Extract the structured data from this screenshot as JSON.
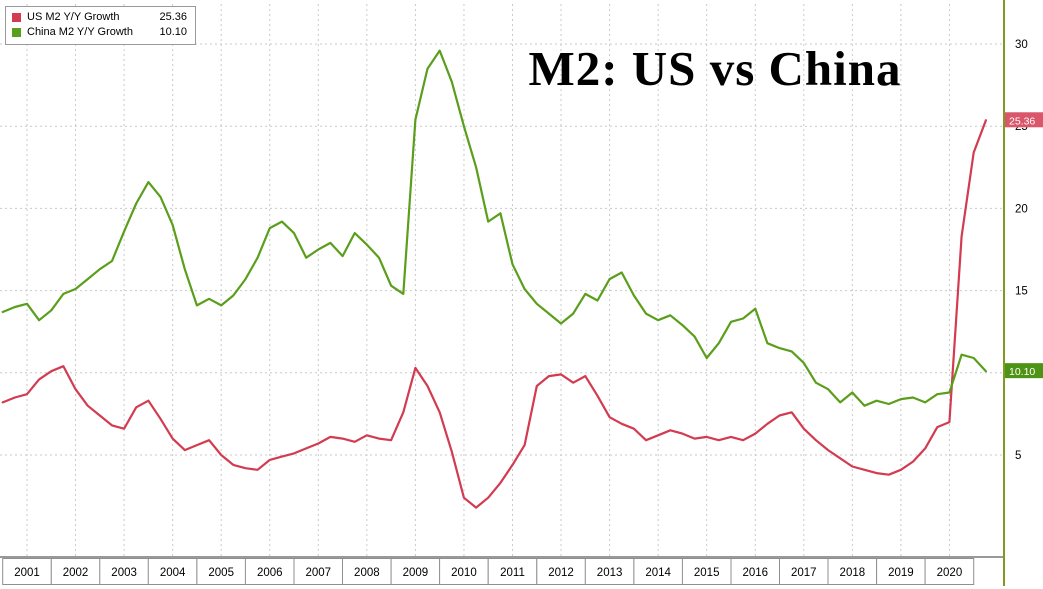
{
  "title": "M2: US vs China",
  "legend": {
    "items": [
      {
        "label": "US M2 Y/Y Growth",
        "value": "25.36",
        "color": "#d23b50"
      },
      {
        "label": "China M2 Y/Y Growth",
        "value": "10.10",
        "color": "#5a9e1b"
      }
    ]
  },
  "axis": {
    "y_tick_labels": [
      "30",
      "25",
      "20",
      "15",
      "10",
      "5"
    ],
    "x_tick_labels": [
      "2001",
      "2002",
      "2003",
      "2004",
      "2005",
      "2006",
      "2007",
      "2008",
      "2009",
      "2010",
      "2011",
      "2012",
      "2013",
      "2014",
      "2015",
      "2016",
      "2017",
      "2018",
      "2019",
      "2020"
    ],
    "spine_color": "#7f9a1e"
  },
  "value_tags": {
    "us": {
      "text": "25.36",
      "color": "#d9566b"
    },
    "china": {
      "text": "10.10",
      "color": "#4e9414"
    }
  },
  "chart_data": {
    "type": "line",
    "title": "M2: US vs China",
    "x_unit": "year (quarterly samples)",
    "grid": "dashed",
    "legend_position": "top-left",
    "y_axis_side": "right",
    "ylim": [
      -1,
      32
    ],
    "y_gridlines": [
      5,
      10,
      15,
      20,
      25,
      30
    ],
    "x_gridlines": [
      2001,
      2002,
      2003,
      2004,
      2005,
      2006,
      2007,
      2008,
      2009,
      2010,
      2011,
      2012,
      2013,
      2014,
      2015,
      2016,
      2017,
      2018,
      2019,
      2020
    ],
    "x": [
      2000.5,
      2000.75,
      2001,
      2001.25,
      2001.5,
      2001.75,
      2002,
      2002.25,
      2002.5,
      2002.75,
      2003,
      2003.25,
      2003.5,
      2003.75,
      2004,
      2004.25,
      2004.5,
      2004.75,
      2005,
      2005.25,
      2005.5,
      2005.75,
      2006,
      2006.25,
      2006.5,
      2006.75,
      2007,
      2007.25,
      2007.5,
      2007.75,
      2008,
      2008.25,
      2008.5,
      2008.75,
      2009,
      2009.25,
      2009.5,
      2009.75,
      2010,
      2010.25,
      2010.5,
      2010.75,
      2011,
      2011.25,
      2011.5,
      2011.75,
      2012,
      2012.25,
      2012.5,
      2012.75,
      2013,
      2013.25,
      2013.5,
      2013.75,
      2014,
      2014.25,
      2014.5,
      2014.75,
      2015,
      2015.25,
      2015.5,
      2015.75,
      2016,
      2016.25,
      2016.5,
      2016.75,
      2017,
      2017.25,
      2017.5,
      2017.75,
      2018,
      2018.25,
      2018.5,
      2018.75,
      2019,
      2019.25,
      2019.5,
      2019.75,
      2020,
      2020.25,
      2020.5,
      2020.75
    ],
    "series": [
      {
        "name": "US M2 Y/Y Growth",
        "color": "#d23b50",
        "last_value": 25.36,
        "values": [
          8.2,
          8.5,
          8.7,
          9.6,
          10.1,
          10.4,
          9.0,
          8.0,
          7.4,
          6.8,
          6.6,
          7.9,
          8.3,
          7.2,
          6.0,
          5.3,
          5.6,
          5.9,
          5.0,
          4.4,
          4.2,
          4.1,
          4.7,
          4.9,
          5.1,
          5.4,
          5.7,
          6.1,
          6.0,
          5.8,
          6.2,
          6.0,
          5.9,
          7.6,
          10.3,
          9.2,
          7.6,
          5.2,
          2.4,
          1.8,
          2.4,
          3.3,
          4.4,
          5.6,
          9.2,
          9.8,
          9.9,
          9.4,
          9.8,
          8.6,
          7.3,
          6.9,
          6.6,
          5.9,
          6.2,
          6.5,
          6.3,
          6.0,
          6.1,
          5.9,
          6.1,
          5.9,
          6.3,
          6.9,
          7.4,
          7.6,
          6.6,
          5.9,
          5.3,
          4.8,
          4.3,
          4.1,
          3.9,
          3.8,
          4.1,
          4.6,
          5.4,
          6.7,
          7.0,
          18.3,
          23.4,
          25.36
        ]
      },
      {
        "name": "China M2 Y/Y Growth",
        "color": "#5a9e1b",
        "last_value": 10.1,
        "values": [
          13.7,
          14.0,
          14.2,
          13.2,
          13.8,
          14.8,
          15.1,
          15.7,
          16.3,
          16.8,
          18.6,
          20.3,
          21.6,
          20.7,
          19.0,
          16.3,
          14.1,
          14.5,
          14.1,
          14.7,
          15.7,
          17.0,
          18.8,
          19.2,
          18.5,
          17.0,
          17.5,
          17.9,
          17.1,
          18.5,
          17.8,
          17.0,
          15.3,
          14.8,
          25.4,
          28.5,
          29.6,
          27.7,
          25.0,
          22.5,
          19.2,
          19.7,
          16.6,
          15.1,
          14.2,
          13.6,
          13.0,
          13.6,
          14.8,
          14.4,
          15.7,
          16.1,
          14.7,
          13.6,
          13.2,
          13.5,
          12.9,
          12.2,
          10.9,
          11.8,
          13.1,
          13.3,
          13.9,
          11.8,
          11.5,
          11.3,
          10.6,
          9.4,
          9.0,
          8.2,
          8.8,
          8.0,
          8.3,
          8.1,
          8.4,
          8.5,
          8.2,
          8.7,
          8.8,
          11.1,
          10.9,
          10.1
        ]
      }
    ]
  }
}
